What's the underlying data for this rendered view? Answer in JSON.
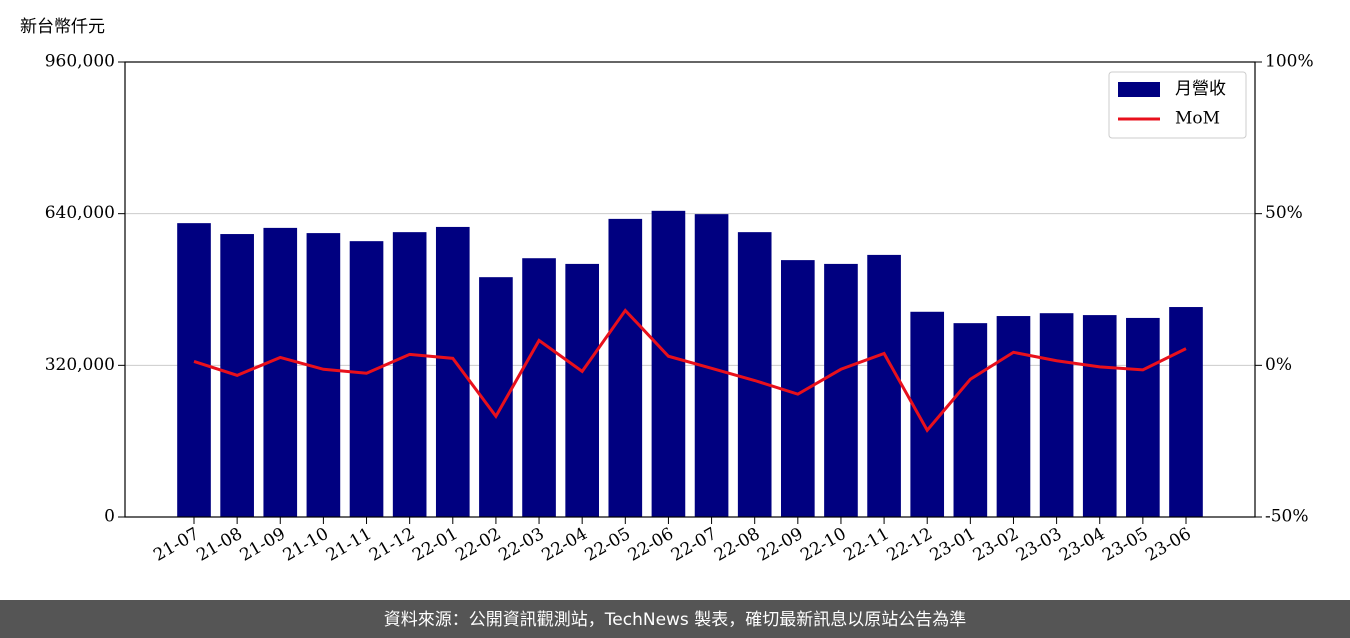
{
  "chart_data": {
    "type": "bar",
    "y_label": "新台幣仟元",
    "source": "資料來源：公開資訊觀測站，TechNews 製表，確切最新訊息以原站公告為準",
    "categories": [
      "21-07",
      "21-08",
      "21-09",
      "21-10",
      "21-11",
      "21-12",
      "22-01",
      "22-02",
      "22-03",
      "22-04",
      "22-05",
      "22-06",
      "22-07",
      "22-08",
      "22-09",
      "22-10",
      "22-11",
      "22-12",
      "23-01",
      "23-02",
      "23-03",
      "23-04",
      "23-05",
      "23-06"
    ],
    "series": [
      {
        "name": "月營收",
        "type": "bar",
        "color": "#000080",
        "values": [
          620000,
          597000,
          610000,
          599000,
          582000,
          601000,
          612000,
          506000,
          546000,
          534000,
          629000,
          646000,
          639000,
          601000,
          542000,
          534000,
          553000,
          433000,
          409000,
          424000,
          430000,
          426000,
          420000,
          443000
        ]
      },
      {
        "name": "MoM",
        "type": "line",
        "color": "#e8101c",
        "axis": "y2",
        "values": [
          1.3,
          -3.3,
          2.6,
          -1.3,
          -2.6,
          3.6,
          2.3,
          -16.8,
          8.2,
          -2.0,
          18.1,
          3.0,
          -1.0,
          -5.0,
          -9.5,
          -1.3,
          3.9,
          -21.4,
          -4.6,
          4.3,
          1.5,
          -0.5,
          -1.5,
          5.5
        ]
      }
    ],
    "ylim": [
      0,
      960000
    ],
    "yticks": [
      0,
      {
        "value": 320000,
        "label": "320,000"
      },
      {
        "value": 640000,
        "label": "640,000"
      },
      {
        "value": 960000,
        "label": "960,000"
      }
    ],
    "y2lim": [
      -50,
      100
    ],
    "y2ticks": [
      {
        "value": -50,
        "label": "-50%"
      },
      {
        "value": 0,
        "label": "0%"
      },
      {
        "value": 50,
        "label": "50%"
      },
      {
        "value": 100,
        "label": "100%"
      }
    ],
    "grid": true,
    "legend": "upper-right"
  }
}
